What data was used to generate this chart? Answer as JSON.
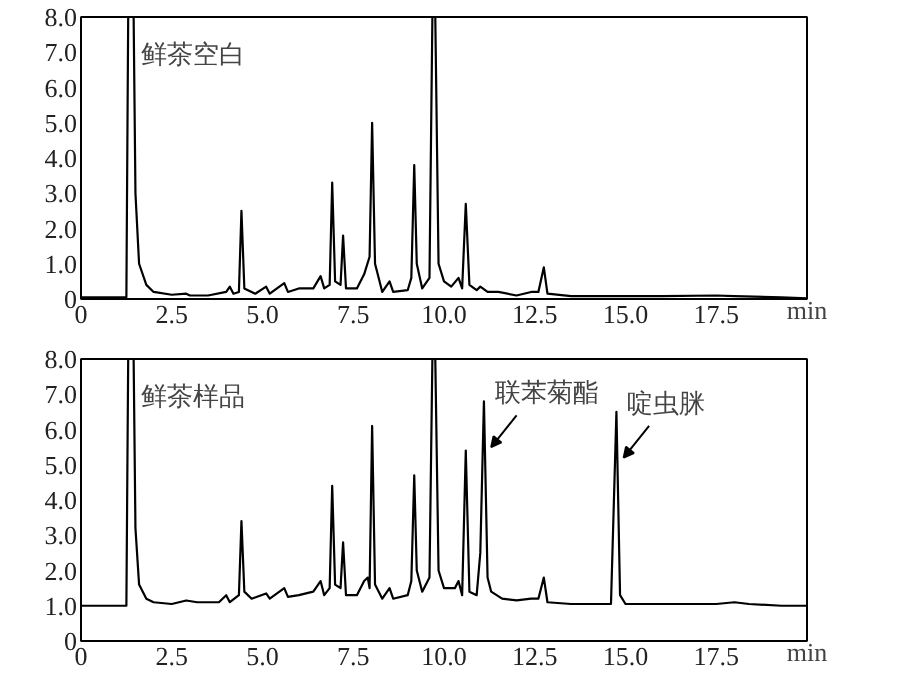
{
  "chart_data": [
    {
      "type": "line",
      "title": "鲜茶空白",
      "xlabel": "min",
      "xlim": [
        0,
        20
      ],
      "ylim": [
        0,
        8
      ],
      "xticks": [
        {
          "value": 0,
          "label": "0"
        },
        {
          "value": 2.5,
          "label": "2.5"
        },
        {
          "value": 5,
          "label": "5.0"
        },
        {
          "value": 7.5,
          "label": "7.5"
        },
        {
          "value": 10,
          "label": "10.0"
        },
        {
          "value": 12.5,
          "label": "12.5"
        },
        {
          "value": 15,
          "label": "15.0"
        },
        {
          "value": 17.5,
          "label": "17.5"
        }
      ],
      "yticks": [
        {
          "value": 0,
          "label": "0"
        },
        {
          "value": 1,
          "label": "1.0"
        },
        {
          "value": 2,
          "label": "2.0"
        },
        {
          "value": 3,
          "label": "3.0"
        },
        {
          "value": 4,
          "label": "4.0"
        },
        {
          "value": 5,
          "label": "5.0"
        },
        {
          "value": 6,
          "label": "6.0"
        },
        {
          "value": 7,
          "label": "7.0"
        },
        {
          "value": 8,
          "label": "8.0"
        }
      ],
      "grid": false,
      "marker": "none",
      "line_style": "solid",
      "series": [
        {
          "color": "#000000",
          "x": [
            0,
            1.25,
            1.3,
            1.45,
            1.5,
            1.6,
            1.8,
            2.0,
            2.5,
            2.9,
            3.0,
            3.5,
            4.0,
            4.1,
            4.2,
            4.35,
            4.42,
            4.5,
            4.8,
            5.1,
            5.2,
            5.6,
            5.7,
            6.0,
            6.4,
            6.6,
            6.7,
            6.85,
            6.92,
            7.0,
            7.15,
            7.22,
            7.3,
            7.6,
            7.8,
            7.95,
            8.02,
            8.1,
            8.3,
            8.5,
            8.6,
            9.0,
            9.1,
            9.18,
            9.25,
            9.4,
            9.6,
            9.68,
            9.76,
            9.85,
            10.0,
            10.2,
            10.4,
            10.5,
            10.6,
            10.7,
            10.9,
            11.0,
            11.2,
            11.5,
            12.0,
            12.4,
            12.6,
            12.75,
            12.85,
            13.5,
            15,
            16,
            17.5,
            18,
            19.3,
            20
          ],
          "values": [
            0.05,
            0.05,
            8,
            8,
            3,
            1.0,
            0.4,
            0.2,
            0.12,
            0.15,
            0.1,
            0.1,
            0.2,
            0.35,
            0.15,
            0.2,
            2.5,
            0.3,
            0.15,
            0.35,
            0.15,
            0.45,
            0.2,
            0.3,
            0.3,
            0.65,
            0.3,
            0.4,
            3.3,
            0.5,
            0.4,
            1.8,
            0.3,
            0.3,
            0.7,
            1.2,
            5.0,
            1.0,
            0.2,
            0.5,
            0.2,
            0.25,
            0.6,
            3.8,
            1.0,
            0.3,
            0.6,
            8,
            8,
            1.0,
            0.5,
            0.35,
            0.6,
            0.3,
            2.7,
            0.4,
            0.25,
            0.35,
            0.2,
            0.2,
            0.1,
            0.2,
            0.2,
            0.9,
            0.15,
            0.08,
            0.08,
            0.08,
            0.1,
            0.08,
            0.05,
            0.02
          ]
        }
      ]
    },
    {
      "type": "line",
      "title": "鲜茶样品",
      "xlabel": "min",
      "xlim": [
        0,
        20
      ],
      "ylim": [
        0,
        8
      ],
      "xticks": [
        {
          "value": 0,
          "label": "0"
        },
        {
          "value": 2.5,
          "label": "2.5"
        },
        {
          "value": 5,
          "label": "5.0"
        },
        {
          "value": 7.5,
          "label": "7.5"
        },
        {
          "value": 10,
          "label": "10.0"
        },
        {
          "value": 12.5,
          "label": "12.5"
        },
        {
          "value": 15,
          "label": "15.0"
        },
        {
          "value": 17.5,
          "label": "17.5"
        }
      ],
      "yticks": [
        {
          "value": 0,
          "label": "0"
        },
        {
          "value": 1,
          "label": "1.0"
        },
        {
          "value": 2,
          "label": "2.0"
        },
        {
          "value": 3,
          "label": "3.0"
        },
        {
          "value": 4,
          "label": "4.0"
        },
        {
          "value": 5,
          "label": "5.0"
        },
        {
          "value": 6,
          "label": "6.0"
        },
        {
          "value": 7,
          "label": "7.0"
        },
        {
          "value": 8,
          "label": "8.0"
        }
      ],
      "grid": false,
      "marker": "none",
      "line_style": "solid",
      "annotations": [
        {
          "text": "联苯菊酯",
          "x": 11.1,
          "y": 6.8
        },
        {
          "text": "啶虫脒",
          "x": 14.75,
          "y": 6.5
        }
      ],
      "series": [
        {
          "color": "#000000",
          "x": [
            0,
            1.25,
            1.3,
            1.45,
            1.5,
            1.6,
            1.8,
            2.0,
            2.5,
            2.9,
            3.2,
            3.8,
            4.0,
            4.1,
            4.35,
            4.42,
            4.5,
            4.7,
            5.1,
            5.2,
            5.6,
            5.7,
            6.0,
            6.4,
            6.6,
            6.7,
            6.85,
            6.92,
            7.0,
            7.15,
            7.22,
            7.3,
            7.6,
            7.8,
            7.9,
            7.95,
            8.02,
            8.1,
            8.3,
            8.5,
            8.6,
            9.0,
            9.1,
            9.18,
            9.25,
            9.4,
            9.6,
            9.68,
            9.76,
            9.85,
            10.0,
            10.3,
            10.4,
            10.5,
            10.6,
            10.7,
            10.9,
            11.0,
            11.1,
            11.2,
            11.3,
            11.6,
            12.0,
            12.4,
            12.6,
            12.75,
            12.85,
            13.5,
            14.6,
            14.75,
            14.85,
            15.0,
            16,
            17.5,
            18,
            18.4,
            19.3,
            20
          ],
          "values": [
            1.0,
            1.0,
            8,
            8,
            3.2,
            1.6,
            1.2,
            1.1,
            1.05,
            1.15,
            1.1,
            1.1,
            1.3,
            1.1,
            1.3,
            3.4,
            1.4,
            1.2,
            1.35,
            1.2,
            1.5,
            1.25,
            1.3,
            1.4,
            1.7,
            1.3,
            1.5,
            4.4,
            1.6,
            1.5,
            2.8,
            1.3,
            1.3,
            1.7,
            1.8,
            1.5,
            6.1,
            1.6,
            1.2,
            1.5,
            1.2,
            1.3,
            1.7,
            4.7,
            2.0,
            1.4,
            1.8,
            8,
            8,
            2.0,
            1.5,
            1.5,
            1.7,
            1.3,
            5.4,
            1.4,
            1.3,
            2.5,
            6.8,
            1.8,
            1.4,
            1.2,
            1.15,
            1.2,
            1.2,
            1.8,
            1.1,
            1.05,
            1.05,
            6.5,
            1.3,
            1.05,
            1.05,
            1.05,
            1.1,
            1.05,
            1.0,
            1.0
          ]
        }
      ]
    }
  ]
}
